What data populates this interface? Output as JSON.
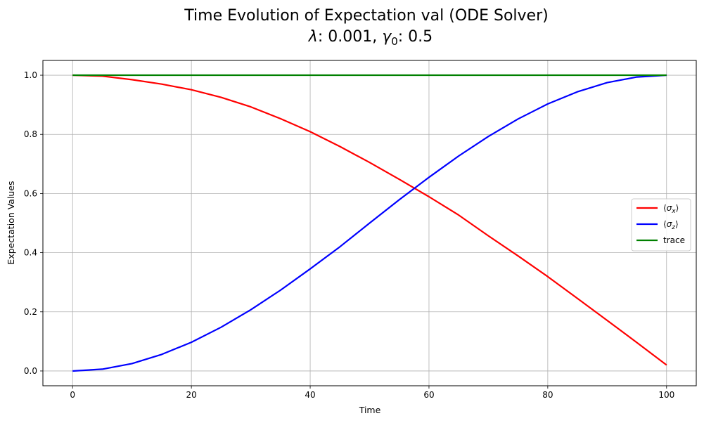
{
  "chart_data": {
    "type": "line",
    "title_line1": "Time Evolution of Expectation val (ODE Solver)",
    "title_line2": {
      "lambda_symbol": "λ",
      "lambda_text": ": 0.001, ",
      "gamma_symbol": "γ",
      "gamma_sub": "0",
      "gamma_text": ": 0.5"
    },
    "xlabel": "Time",
    "ylabel": "Expectation Values",
    "xlim": [
      -5,
      105
    ],
    "ylim": [
      -0.05,
      1.05
    ],
    "xticks": [
      0,
      20,
      40,
      60,
      80,
      100
    ],
    "yticks": [
      0.0,
      0.2,
      0.4,
      0.6,
      0.8,
      1.0
    ],
    "grid": true,
    "legend_position": "center-right",
    "series": [
      {
        "name": "⟨σx⟩",
        "legend_base": "σ",
        "legend_sub": "x",
        "color": "#ff0000",
        "x": [
          0,
          5,
          10,
          15,
          20,
          25,
          30,
          35,
          40,
          45,
          50,
          55,
          60,
          65,
          70,
          75,
          80,
          85,
          90,
          95,
          100
        ],
        "values": [
          1.0,
          0.997,
          0.985,
          0.97,
          0.951,
          0.925,
          0.893,
          0.853,
          0.809,
          0.759,
          0.705,
          0.648,
          0.589,
          0.527,
          0.457,
          0.389,
          0.319,
          0.245,
          0.171,
          0.096,
          0.02
        ]
      },
      {
        "name": "⟨σz⟩",
        "legend_base": "σ",
        "legend_sub": "z",
        "color": "#0000ff",
        "x": [
          0,
          5,
          10,
          15,
          20,
          25,
          30,
          35,
          40,
          45,
          50,
          55,
          60,
          65,
          70,
          75,
          80,
          85,
          90,
          95,
          100
        ],
        "values": [
          0.0,
          0.006,
          0.025,
          0.056,
          0.097,
          0.148,
          0.207,
          0.273,
          0.345,
          0.42,
          0.5,
          0.579,
          0.655,
          0.727,
          0.793,
          0.852,
          0.903,
          0.944,
          0.975,
          0.994,
          1.0
        ]
      },
      {
        "name": "trace",
        "color": "#008000",
        "x": [
          0,
          100
        ],
        "values": [
          1.0,
          1.0
        ]
      }
    ]
  }
}
